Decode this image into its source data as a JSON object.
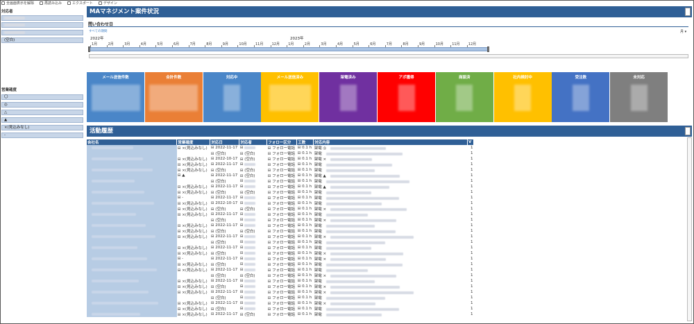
{
  "toolbar": {
    "items": [
      "全画面表示を解除",
      "再読み込み",
      "エクスポート",
      "デザイン"
    ]
  },
  "left": {
    "filter1_title": "対応者",
    "filter1_items": [
      "",
      "",
      "",
      "(空白)"
    ],
    "filter2_title": "営業確度",
    "filter2_items": [
      "〇",
      "◎",
      "△",
      "▲",
      "×(見込みなし)",
      "-"
    ]
  },
  "header": {
    "title": "MAマネジメント案件状況",
    "section_title": "問い合わせ日",
    "all_periods": "すべての期間",
    "unit": "月 ▾"
  },
  "timeline": {
    "year1": "2022年",
    "year2": "2023年",
    "months": [
      "1月",
      "2月",
      "3月",
      "4月",
      "5月",
      "6月",
      "7月",
      "8月",
      "9月",
      "10月",
      "11月",
      "12月",
      "1月",
      "2月",
      "3月",
      "4月",
      "5月",
      "6月",
      "7月",
      "8月",
      "9月",
      "10月",
      "11月",
      "12月"
    ]
  },
  "kpis": [
    {
      "title": "メール送信件数",
      "color": "#4a86c8"
    },
    {
      "title": "合計件数",
      "color": "#ea7f36"
    },
    {
      "title": "対応中",
      "color": "#4a86c8"
    },
    {
      "title": "メール送信済み",
      "color": "#ffc000"
    },
    {
      "title": "架電済み",
      "color": "#7030a0"
    },
    {
      "title": "アポ獲得",
      "color": "#ff0000"
    },
    {
      "title": "商談済",
      "color": "#70ad47"
    },
    {
      "title": "社内検討中",
      "color": "#ffc000"
    },
    {
      "title": "受注数",
      "color": "#4472c4"
    },
    {
      "title": "未対応",
      "color": "#7f7f7f"
    }
  ],
  "activity": {
    "title": "活動履歴",
    "columns": [
      "会社名",
      "営業確度",
      "対応日",
      "対応者",
      "フォロー区分",
      "工数",
      "対応内容",
      "V"
    ],
    "rows": [
      {
        "c1": "⊟ ×(見込みなし)",
        "c2": "⊟ 2022-11-17",
        "c3": "⊟",
        "c4": "⊟ フォロー電話",
        "c5": "⊟ 0.1 h",
        "c6": "架電 ◎",
        "v": "1"
      },
      {
        "c1": "",
        "c2": "⊟ (空白)",
        "c3": "⊟ (空白)",
        "c4": "⊟ フォロー電話",
        "c5": "⊟ 0.1 h",
        "c6": "架電",
        "v": "1"
      },
      {
        "c1": "⊟ ×(見込みなし)",
        "c2": "⊟ 2022-10-17",
        "c3": "⊟ (空白)",
        "c4": "⊟ フォロー電話",
        "c5": "⊟ 0.1 h",
        "c6": "架電 ×",
        "v": "1"
      },
      {
        "c1": "⊟ ×(見込みなし)",
        "c2": "⊟ 2022-11-17",
        "c3": "⊟",
        "c4": "⊟ フォロー電話",
        "c5": "⊟ 0.1 h",
        "c6": "架電",
        "v": "1"
      },
      {
        "c1": "⊟ ×(見込みなし)",
        "c2": "⊟ (空白)",
        "c3": "⊟ (空白)",
        "c4": "⊟ フォロー電話",
        "c5": "⊟ 0.1 h",
        "c6": "架電",
        "v": "1"
      },
      {
        "c1": "⊟ ▲",
        "c2": "⊟ 2022-11-17",
        "c3": "⊟ (空白)",
        "c4": "⊟ フォロー電話",
        "c5": "⊟ 0.1 h",
        "c6": "架電 ▲",
        "v": "1"
      },
      {
        "c1": "",
        "c2": "⊟ (空白)",
        "c3": "⊟",
        "c4": "⊟ フォロー電話",
        "c5": "⊟ 0.1 h",
        "c6": "架電",
        "v": "1"
      },
      {
        "c1": "⊟ ×(見込みなし)",
        "c2": "⊟ 2022-11-17",
        "c3": "⊟",
        "c4": "⊟ フォロー電話",
        "c5": "⊟ 0.1 h",
        "c6": "架電 ▲",
        "v": "1"
      },
      {
        "c1": "⊟ ×(見込みなし)",
        "c2": "⊟ (空白)",
        "c3": "⊟ (空白)",
        "c4": "⊟ フォロー電話",
        "c5": "⊟ 0.1 h",
        "c6": "架電",
        "v": "1"
      },
      {
        "c1": "⊟ -",
        "c2": "⊟ 2022-11-17",
        "c3": "⊟",
        "c4": "⊟ フォロー電話",
        "c5": "⊟ 0.1 h",
        "c6": "架電",
        "v": "1"
      },
      {
        "c1": "⊟ ×(見込みなし)",
        "c2": "⊟ 2022-10-17",
        "c3": "⊟",
        "c4": "⊟ フォロー電話",
        "c5": "⊟ 0.1 h",
        "c6": "架電",
        "v": "1"
      },
      {
        "c1": "⊟ ×(見込みなし)",
        "c2": "⊟ (空白)",
        "c3": "⊟ (空白)",
        "c4": "⊟ フォロー電話",
        "c5": "⊟ 0.1 h",
        "c6": "架電 ×",
        "v": "1"
      },
      {
        "c1": "⊟ ×(見込みなし)",
        "c2": "⊟ 2022-11-17",
        "c3": "⊟",
        "c4": "⊟ フォロー電話",
        "c5": "⊟ 0.1 h",
        "c6": "架電",
        "v": "1"
      },
      {
        "c1": "",
        "c2": "⊟ (空白)",
        "c3": "⊟",
        "c4": "⊟ フォロー電話",
        "c5": "⊟ 0.1 h",
        "c6": "架電 ×",
        "v": "1"
      },
      {
        "c1": "⊟ ×(見込みなし)",
        "c2": "⊟ 2022-11-17",
        "c3": "⊟",
        "c4": "⊟ フォロー電話",
        "c5": "⊟ 0.1 h",
        "c6": "架電",
        "v": "1"
      },
      {
        "c1": "⊟ ×(見込みなし)",
        "c2": "⊟ (空白)",
        "c3": "⊟ (空白)",
        "c4": "⊟ フォロー電話",
        "c5": "⊟ 0.1 h",
        "c6": "架電",
        "v": "1"
      },
      {
        "c1": "⊟ ×(見込みなし)",
        "c2": "⊟ 2022-11-17",
        "c3": "⊟",
        "c4": "⊟ フォロー電話",
        "c5": "⊟ 0.1 h",
        "c6": "架電 ×",
        "v": "1"
      },
      {
        "c1": "",
        "c2": "⊟ (空白)",
        "c3": "⊟",
        "c4": "⊟ フォロー電話",
        "c5": "⊟ 0.1 h",
        "c6": "架電",
        "v": "1"
      },
      {
        "c1": "⊟ ×(見込みなし)",
        "c2": "⊟ 2022-11-17",
        "c3": "⊟",
        "c4": "⊟ フォロー電話",
        "c5": "⊟ 0.1 h",
        "c6": "架電",
        "v": "1"
      },
      {
        "c1": "⊟ ×(見込みなし)",
        "c2": "⊟ (空白)",
        "c3": "⊟",
        "c4": "⊟ フォロー電話",
        "c5": "⊟ 0.1 h",
        "c6": "架電 ×",
        "v": "1"
      },
      {
        "c1": "⊟ -",
        "c2": "⊟ 2022-11-17",
        "c3": "⊟",
        "c4": "⊟ フォロー電話",
        "c5": "⊟ 0.1 h",
        "c6": "架電 ×",
        "v": "1"
      },
      {
        "c1": "⊟ ×(見込みなし)",
        "c2": "⊟ (空白)",
        "c3": "⊟",
        "c4": "⊟ フォロー電話",
        "c5": "⊟ 0.1 h",
        "c6": "架電",
        "v": "1"
      },
      {
        "c1": "⊟ ×(見込みなし)",
        "c2": "⊟ 2022-11-17",
        "c3": "⊟",
        "c4": "⊟ フォロー電話",
        "c5": "⊟ 0.1 h",
        "c6": "架電",
        "v": "1"
      },
      {
        "c1": "",
        "c2": "⊟ (空白)",
        "c3": "⊟ (空白)",
        "c4": "⊟ フォロー電話",
        "c5": "⊟ 0.1 h",
        "c6": "架電 ×",
        "v": "1"
      },
      {
        "c1": "⊟ ×(見込みなし)",
        "c2": "⊟ 2022-11-17",
        "c3": "⊟",
        "c4": "⊟ フォロー電話",
        "c5": "⊟ 0.1 h",
        "c6": "架電",
        "v": "1"
      },
      {
        "c1": "⊟ ×(見込みなし)",
        "c2": "⊟ (空白)",
        "c3": "⊟",
        "c4": "⊟ フォロー電話",
        "c5": "⊟ 0.1 h",
        "c6": "架電 ×",
        "v": "1"
      },
      {
        "c1": "⊟ ×(見込みなし)",
        "c2": "⊟ 2022-11-17",
        "c3": "⊟",
        "c4": "⊟ フォロー電話",
        "c5": "⊟ 0.1 h",
        "c6": "架電 ×",
        "v": "1"
      },
      {
        "c1": "",
        "c2": "⊟ (空白)",
        "c3": "⊟",
        "c4": "⊟ フォロー電話",
        "c5": "⊟ 0.1 h",
        "c6": "架電",
        "v": "1"
      },
      {
        "c1": "⊟ ×(見込みなし)",
        "c2": "⊟ 2022-11-17",
        "c3": "⊟",
        "c4": "⊟ フォロー電話",
        "c5": "⊟ 0.1 h",
        "c6": "架電 ×",
        "v": "1"
      },
      {
        "c1": "⊟ ×(見込みなし)",
        "c2": "⊟ (空白)",
        "c3": "⊟",
        "c4": "⊟ フォロー電話",
        "c5": "⊟ 0.1 h",
        "c6": "架電",
        "v": "1"
      },
      {
        "c1": "⊟ ×(見込みなし)",
        "c2": "⊟ 2022-11-17",
        "c3": "⊟ (空白)",
        "c4": "⊟ フォロー電話",
        "c5": "⊟ 0.1 h",
        "c6": "架電",
        "v": "1"
      }
    ]
  }
}
